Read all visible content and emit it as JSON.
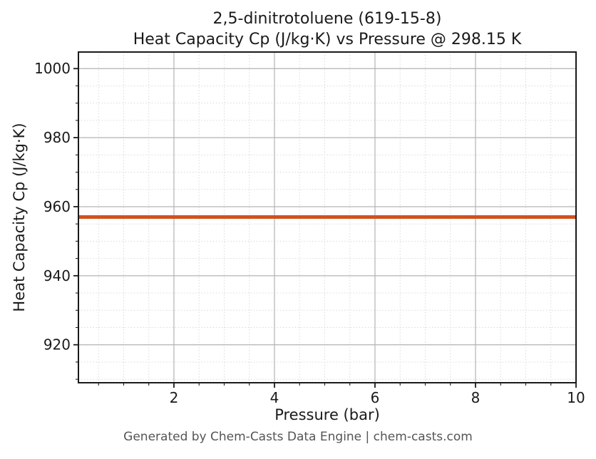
{
  "chart_data": {
    "type": "line",
    "title_lines": [
      "2,5-dinitrotoluene (619-15-8)",
      "Heat Capacity Cp (J/kg·K) vs Pressure @ 298.15 K"
    ],
    "compound": "2,5-dinitrotoluene",
    "cas_number": "619-15-8",
    "temperature_K": "298.15",
    "xlabel": "Pressure (bar)",
    "ylabel": "Heat Capacity Cp (J/kg·K)",
    "xlim": [
      0.1,
      10
    ],
    "ylim": [
      909,
      1004.8
    ],
    "x_ticks": [
      2,
      4,
      6,
      8,
      10
    ],
    "y_ticks": [
      920,
      940,
      960,
      980,
      1000
    ],
    "x_minor_step": 0.5,
    "y_minor_step": 5,
    "grid": true,
    "legend": false,
    "series": [
      {
        "name": "Heat Capacity Cp",
        "color": "#d0521f",
        "line_width": 5,
        "x": [
          0.1,
          10
        ],
        "y": [
          957,
          957
        ]
      }
    ]
  },
  "footer": {
    "text": "Generated by Chem-Casts Data Engine | chem-casts.com"
  },
  "colors": {
    "background": "#ffffff",
    "axis": "#1a1a1a",
    "tick_label": "#1a1a1a",
    "grid_major": "#b3b3b3",
    "grid_minor": "#d9d9d9",
    "footer_text": "#555555",
    "series_line": "#d0521f"
  }
}
